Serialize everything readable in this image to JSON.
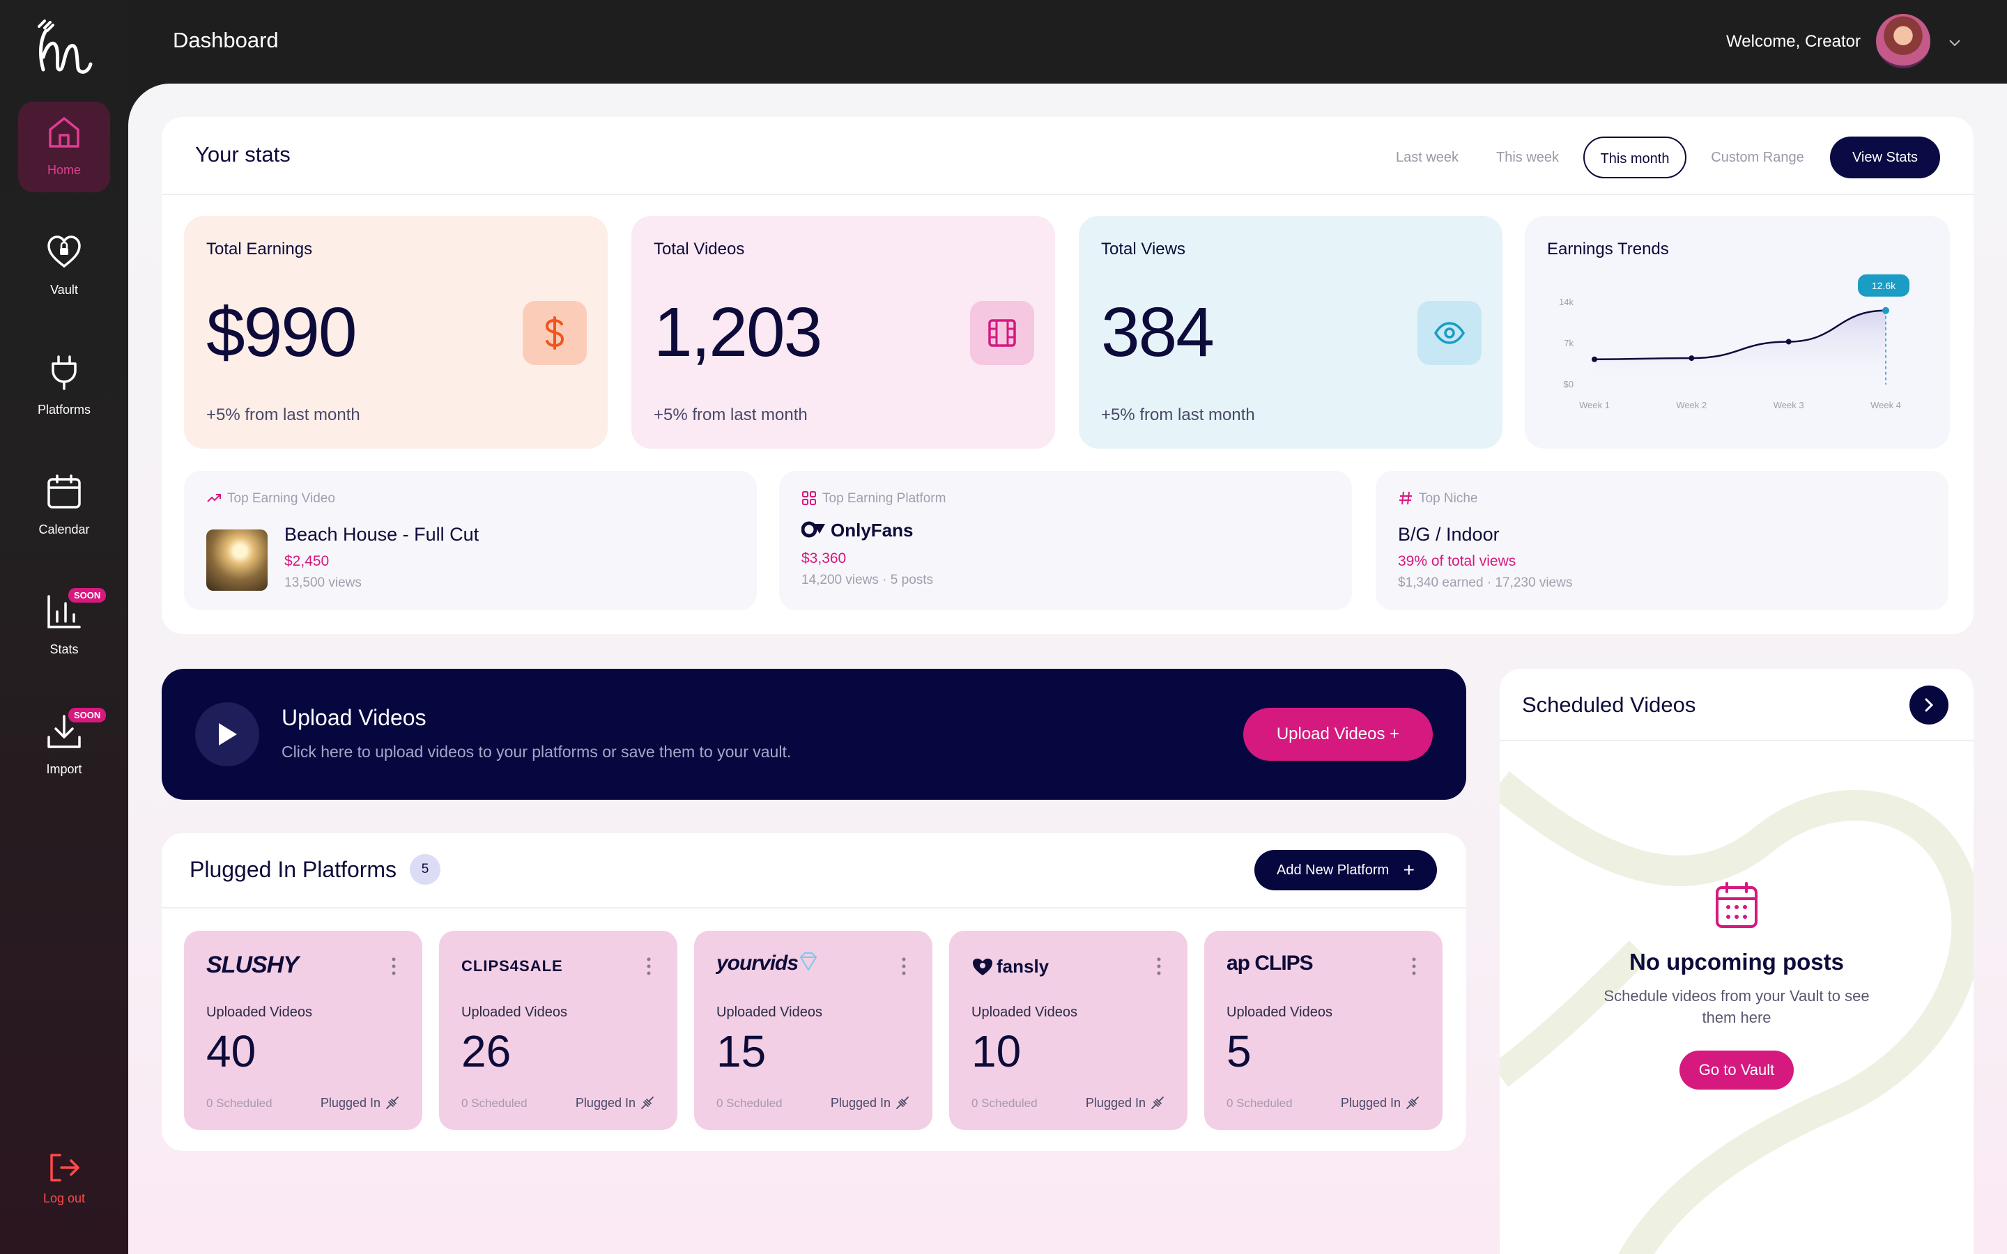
{
  "app": {
    "logo": "M logo"
  },
  "sidebar": {
    "items": [
      {
        "label": "Home",
        "icon": "home-icon",
        "active": true
      },
      {
        "label": "Vault",
        "icon": "heart-lock-icon"
      },
      {
        "label": "Platforms",
        "icon": "plug-icon"
      },
      {
        "label": "Calendar",
        "icon": "calendar-icon"
      },
      {
        "label": "Stats",
        "icon": "bar-chart-icon",
        "badge": "SOON"
      },
      {
        "label": "Import",
        "icon": "download-icon",
        "badge": "SOON"
      }
    ],
    "logout": "Log out"
  },
  "header": {
    "title": "Dashboard",
    "welcome": "Welcome, Creator"
  },
  "stats": {
    "title": "Your stats",
    "ranges": [
      "Last week",
      "This week",
      "This month",
      "Custom Range"
    ],
    "selected_range": "This month",
    "view_button": "View Stats",
    "metrics": [
      {
        "title": "Total Earnings",
        "value": "$990",
        "sub": "+5% from last month",
        "icon": "dollar-icon"
      },
      {
        "title": "Total Videos",
        "value": "1,203",
        "sub": "+5% from last month",
        "icon": "film-icon"
      },
      {
        "title": "Total Views",
        "value": "384",
        "sub": "+5% from last month",
        "icon": "eye-icon"
      }
    ],
    "trend": {
      "title": "Earnings Trends",
      "tooltip": "12.6k"
    },
    "highlights": {
      "video": {
        "head": "Top Earning Video",
        "name": "Beach House - Full Cut",
        "amount": "$2,450",
        "sub": "13,500 views"
      },
      "platform": {
        "head": "Top Earning Platform",
        "name": "OnlyFans",
        "amount": "$3,360",
        "sub": "14,200 views · 5 posts"
      },
      "niche": {
        "head": "Top Niche",
        "name": "B/G / Indoor",
        "amount": "39% of total views",
        "sub": "$1,340 earned · 17,230 views"
      }
    }
  },
  "chart_data": {
    "type": "line",
    "title": "Earnings Trends",
    "categories": [
      "Week 1",
      "Week 2",
      "Week 3",
      "Week 4"
    ],
    "values": [
      4300,
      4500,
      7300,
      12600
    ],
    "yticks": [
      "$0",
      "7k",
      "14k"
    ],
    "ylim": [
      0,
      14000
    ],
    "annotation": "12.6k"
  },
  "upload": {
    "title": "Upload Videos",
    "subtitle": "Click here to upload videos to your platforms or save them to your vault.",
    "button": "Upload Videos +"
  },
  "platforms": {
    "title": "Plugged In Platforms",
    "count": "5",
    "add_button": "Add New Platform",
    "uploaded_label": "Uploaded Videos",
    "status": "Plugged In",
    "items": [
      {
        "brand": "SLUSHY",
        "uploaded": "40",
        "scheduled": "0 Scheduled"
      },
      {
        "brand": "CLIPS4SALE",
        "uploaded": "26",
        "scheduled": "0 Scheduled"
      },
      {
        "brand": "yourvids",
        "uploaded": "15",
        "scheduled": "0 Scheduled"
      },
      {
        "brand": "fansly",
        "uploaded": "10",
        "scheduled": "0 Scheduled"
      },
      {
        "brand": "ap CLIPS",
        "uploaded": "5",
        "scheduled": "0 Scheduled"
      }
    ]
  },
  "scheduled": {
    "title": "Scheduled Videos",
    "empty_title": "No upcoming posts",
    "empty_sub": "Schedule videos from your Vault to see them here",
    "button": "Go to Vault"
  },
  "colors": {
    "accent": "#d6197f",
    "navy": "#070740",
    "sidebar": "#1f1f1f"
  }
}
